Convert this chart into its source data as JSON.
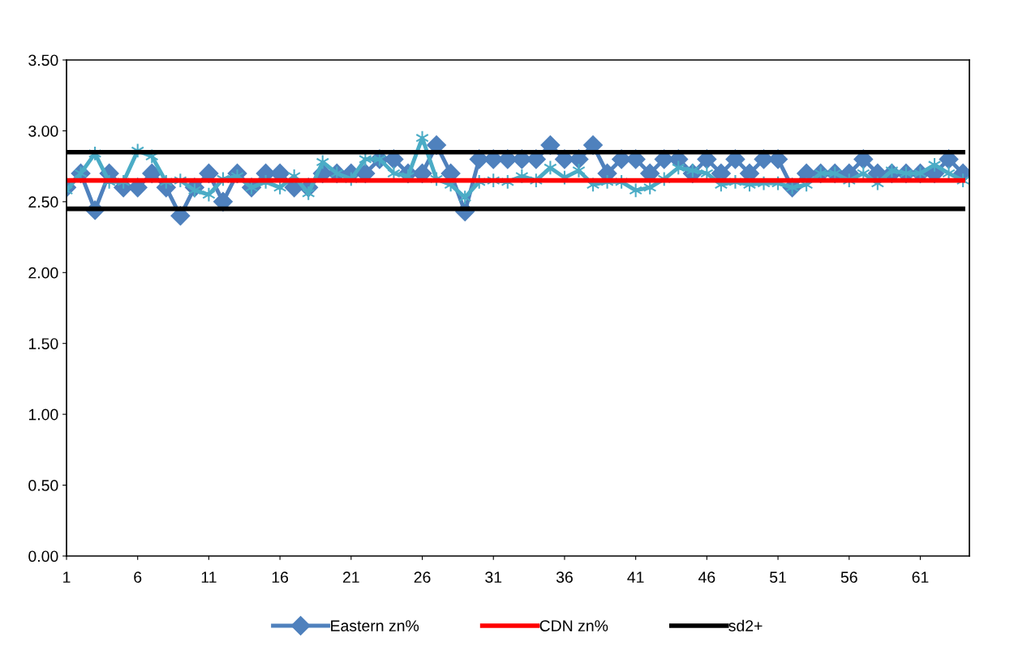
{
  "chart_data": {
    "type": "line",
    "categories": [
      "1",
      null,
      null,
      null,
      null,
      "6",
      null,
      null,
      null,
      null,
      "11",
      null,
      null,
      null,
      null,
      "16",
      null,
      null,
      null,
      null,
      "21",
      null,
      null,
      null,
      null,
      "26",
      null,
      null,
      null,
      null,
      "31",
      null,
      null,
      null,
      null,
      "36",
      null,
      null,
      null,
      null,
      "41",
      null,
      null,
      null,
      null,
      "46",
      null,
      null,
      null,
      null,
      "51",
      null,
      null,
      null,
      null,
      "56",
      null,
      null,
      null,
      null,
      "61",
      null,
      null,
      null
    ],
    "ylim": [
      0,
      3.5
    ],
    "yticks": [
      {
        "value": 0,
        "label": "0.00"
      },
      {
        "value": 0.5,
        "label": "0.50"
      },
      {
        "value": 1,
        "label": "1.00"
      },
      {
        "value": 1.5,
        "label": "1.50"
      },
      {
        "value": 2,
        "label": "2.00"
      },
      {
        "value": 2.5,
        "label": "2.50"
      },
      {
        "value": 3,
        "label": "3.00"
      },
      {
        "value": 3.5,
        "label": "3.50"
      }
    ],
    "grid": false,
    "legend": "bottom",
    "series": [
      {
        "name": "Eastern zn%",
        "color": "#4f81bd",
        "marker": "diamond",
        "values": [
          2.6,
          2.7,
          2.44,
          2.7,
          2.6,
          2.6,
          2.7,
          2.6,
          2.4,
          2.6,
          2.7,
          2.5,
          2.7,
          2.6,
          2.7,
          2.7,
          2.6,
          2.6,
          2.7,
          2.7,
          2.7,
          2.7,
          2.8,
          2.8,
          2.7,
          2.7,
          2.9,
          2.7,
          2.43,
          2.8,
          2.8,
          2.8,
          2.8,
          2.8,
          2.9,
          2.8,
          2.8,
          2.9,
          2.7,
          2.8,
          2.8,
          2.7,
          2.8,
          2.8,
          2.7,
          2.8,
          2.7,
          2.8,
          2.7,
          2.8,
          2.8,
          2.6,
          2.7,
          2.7,
          2.7,
          2.7,
          2.8,
          2.7,
          2.7,
          2.7,
          2.7,
          2.7,
          2.8,
          2.7
        ]
      },
      {
        "color": "#4bacc6",
        "marker": "cross",
        "values": [
          2.58,
          2.7,
          2.84,
          2.64,
          2.64,
          2.86,
          2.82,
          2.64,
          2.65,
          2.58,
          2.55,
          2.66,
          2.68,
          2.6,
          2.64,
          2.6,
          2.68,
          2.56,
          2.78,
          2.7,
          2.66,
          2.8,
          2.8,
          2.7,
          2.68,
          2.95,
          2.66,
          2.62,
          2.53,
          2.64,
          2.65,
          2.64,
          2.68,
          2.65,
          2.74,
          2.67,
          2.72,
          2.62,
          2.64,
          2.64,
          2.58,
          2.6,
          2.66,
          2.74,
          2.72,
          2.7,
          2.62,
          2.64,
          2.62,
          2.63,
          2.63,
          2.6,
          2.62,
          2.7,
          2.7,
          2.65,
          2.7,
          2.63,
          2.72,
          2.7,
          2.7,
          2.76,
          2.7,
          2.65
        ]
      },
      {
        "name": "CDN zn%",
        "color": "#ff0000",
        "marker": "none",
        "values": [
          2.65,
          2.65,
          2.65,
          2.65,
          2.65,
          2.65,
          2.65,
          2.65,
          2.65,
          2.65,
          2.65,
          2.65,
          2.65,
          2.65,
          2.65,
          2.65,
          2.65,
          2.65,
          2.65,
          2.65,
          2.65,
          2.65,
          2.65,
          2.65,
          2.65,
          2.65,
          2.65,
          2.65,
          2.65,
          2.65,
          2.65,
          2.65,
          2.65,
          2.65,
          2.65,
          2.65,
          2.65,
          2.65,
          2.65,
          2.65,
          2.65,
          2.65,
          2.65,
          2.65,
          2.65,
          2.65,
          2.65,
          2.65,
          2.65,
          2.65,
          2.65,
          2.65,
          2.65,
          2.65,
          2.65,
          2.65,
          2.65,
          2.65,
          2.65,
          2.65,
          2.65,
          2.65,
          2.65,
          2.65
        ]
      },
      {
        "name": "sd2+",
        "color": "#000000",
        "marker": "none",
        "values": [
          2.85,
          2.85,
          2.85,
          2.85,
          2.85,
          2.85,
          2.85,
          2.85,
          2.85,
          2.85,
          2.85,
          2.85,
          2.85,
          2.85,
          2.85,
          2.85,
          2.85,
          2.85,
          2.85,
          2.85,
          2.85,
          2.85,
          2.85,
          2.85,
          2.85,
          2.85,
          2.85,
          2.85,
          2.85,
          2.85,
          2.85,
          2.85,
          2.85,
          2.85,
          2.85,
          2.85,
          2.85,
          2.85,
          2.85,
          2.85,
          2.85,
          2.85,
          2.85,
          2.85,
          2.85,
          2.85,
          2.85,
          2.85,
          2.85,
          2.85,
          2.85,
          2.85,
          2.85,
          2.85,
          2.85,
          2.85,
          2.85,
          2.85,
          2.85,
          2.85,
          2.85,
          2.85,
          2.85,
          2.85
        ]
      },
      {
        "color": "#000000",
        "marker": "none",
        "values": [
          2.45,
          2.45,
          2.45,
          2.45,
          2.45,
          2.45,
          2.45,
          2.45,
          2.45,
          2.45,
          2.45,
          2.45,
          2.45,
          2.45,
          2.45,
          2.45,
          2.45,
          2.45,
          2.45,
          2.45,
          2.45,
          2.45,
          2.45,
          2.45,
          2.45,
          2.45,
          2.45,
          2.45,
          2.45,
          2.45,
          2.45,
          2.45,
          2.45,
          2.45,
          2.45,
          2.45,
          2.45,
          2.45,
          2.45,
          2.45,
          2.45,
          2.45,
          2.45,
          2.45,
          2.45,
          2.45,
          2.45,
          2.45,
          2.45,
          2.45,
          2.45,
          2.45,
          2.45,
          2.45,
          2.45,
          2.45,
          2.45,
          2.45,
          2.45,
          2.45,
          2.45,
          2.45,
          2.45,
          2.45
        ]
      }
    ]
  }
}
